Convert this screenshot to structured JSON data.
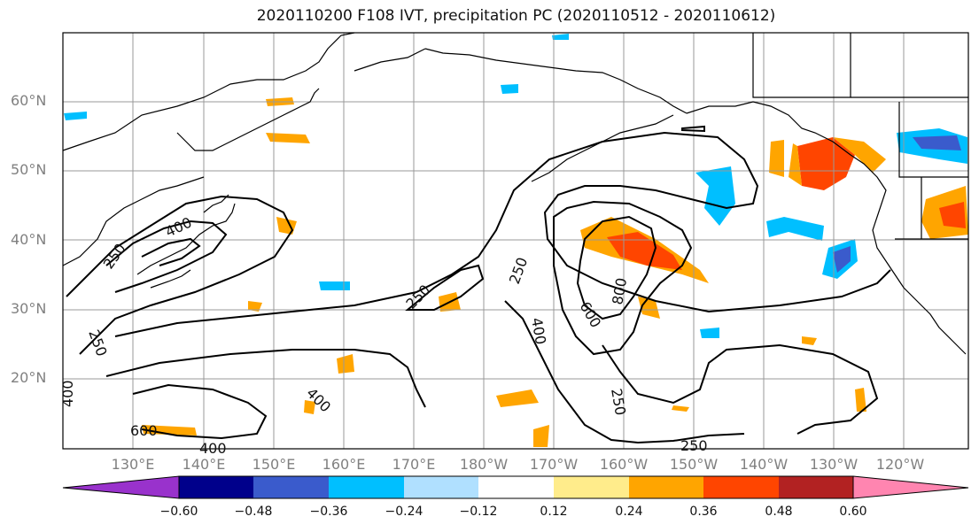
{
  "title": "2020110200 F108 IVT, precipitation PC (2020110512 - 2020110612)",
  "lat_labels": [
    "60°N",
    "50°N",
    "40°N",
    "30°N",
    "20°N"
  ],
  "lon_labels": [
    "130°E",
    "140°E",
    "150°E",
    "160°E",
    "170°E",
    "180°W",
    "170°W",
    "160°W",
    "150°W",
    "140°W",
    "130°W",
    "120°W"
  ],
  "contour_labels": [
    "400",
    "250",
    "250",
    "250",
    "250",
    "400",
    "600",
    "800",
    "250",
    "400",
    "600",
    "400",
    "250",
    "400"
  ],
  "colorbar": {
    "ticks": [
      "−0.60",
      "−0.48",
      "−0.36",
      "−0.24",
      "−0.12",
      "0.12",
      "0.24",
      "0.36",
      "0.48",
      "0.60"
    ],
    "colors": [
      "#9932cc",
      "#00008b",
      "#3a5bcc",
      "#00bfff",
      "#b0e0ff",
      "#ffffff",
      "#ffec8b",
      "#ffa500",
      "#ff4500",
      "#b22222",
      "#ff85b0"
    ]
  },
  "colors": {
    "contour": "#000000",
    "grid": "#999999",
    "coast": "#000000"
  }
}
